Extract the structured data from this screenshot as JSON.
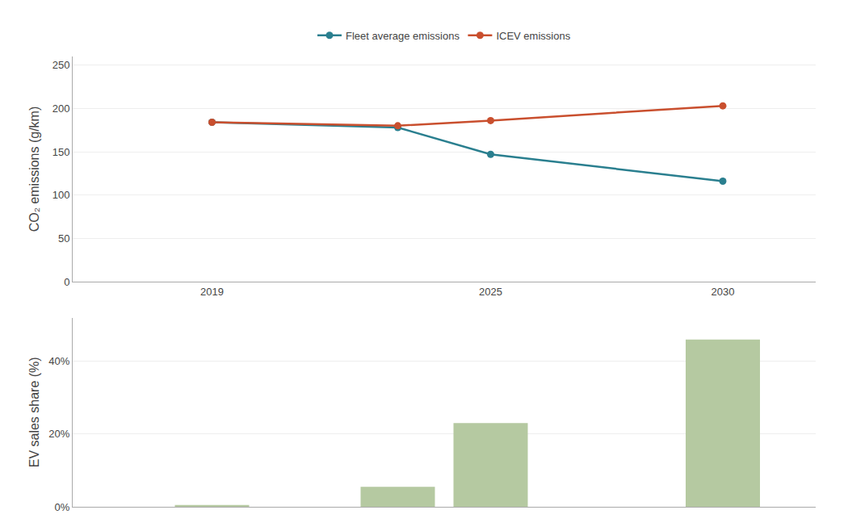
{
  "chart_data": [
    {
      "type": "line",
      "x": [
        2019,
        2023,
        2025,
        2030
      ],
      "series": [
        {
          "name": "Fleet average emissions",
          "color": "#2a7f8f",
          "values": [
            184,
            178,
            147,
            116
          ]
        },
        {
          "name": "ICEV emissions",
          "color": "#c94f2e",
          "values": [
            184,
            180,
            186,
            203
          ]
        }
      ],
      "marker": "circle",
      "y_label": "CO₂ emissions (g/km)",
      "ylim": [
        0,
        260
      ],
      "yticks": [
        0,
        50,
        100,
        150,
        200,
        250
      ],
      "xlim": [
        2016.0,
        2032.0
      ],
      "xticks": [
        2019,
        2025,
        2030
      ],
      "grid": true,
      "legend": "top"
    },
    {
      "type": "bar",
      "x": [
        2019,
        2023,
        2025,
        2030
      ],
      "values": [
        0.5,
        5.5,
        23,
        46
      ],
      "color": "#b5c9a1",
      "y_label": "EV sales share (%)",
      "ylim": [
        0,
        52
      ],
      "yticks": [
        {
          "value": 0,
          "label": "0%"
        },
        {
          "value": 20,
          "label": "20%"
        },
        {
          "value": 40,
          "label": "40%"
        }
      ],
      "xlim": [
        2016.0,
        2032.0
      ],
      "grid": true,
      "tick_labels": "y"
    }
  ]
}
